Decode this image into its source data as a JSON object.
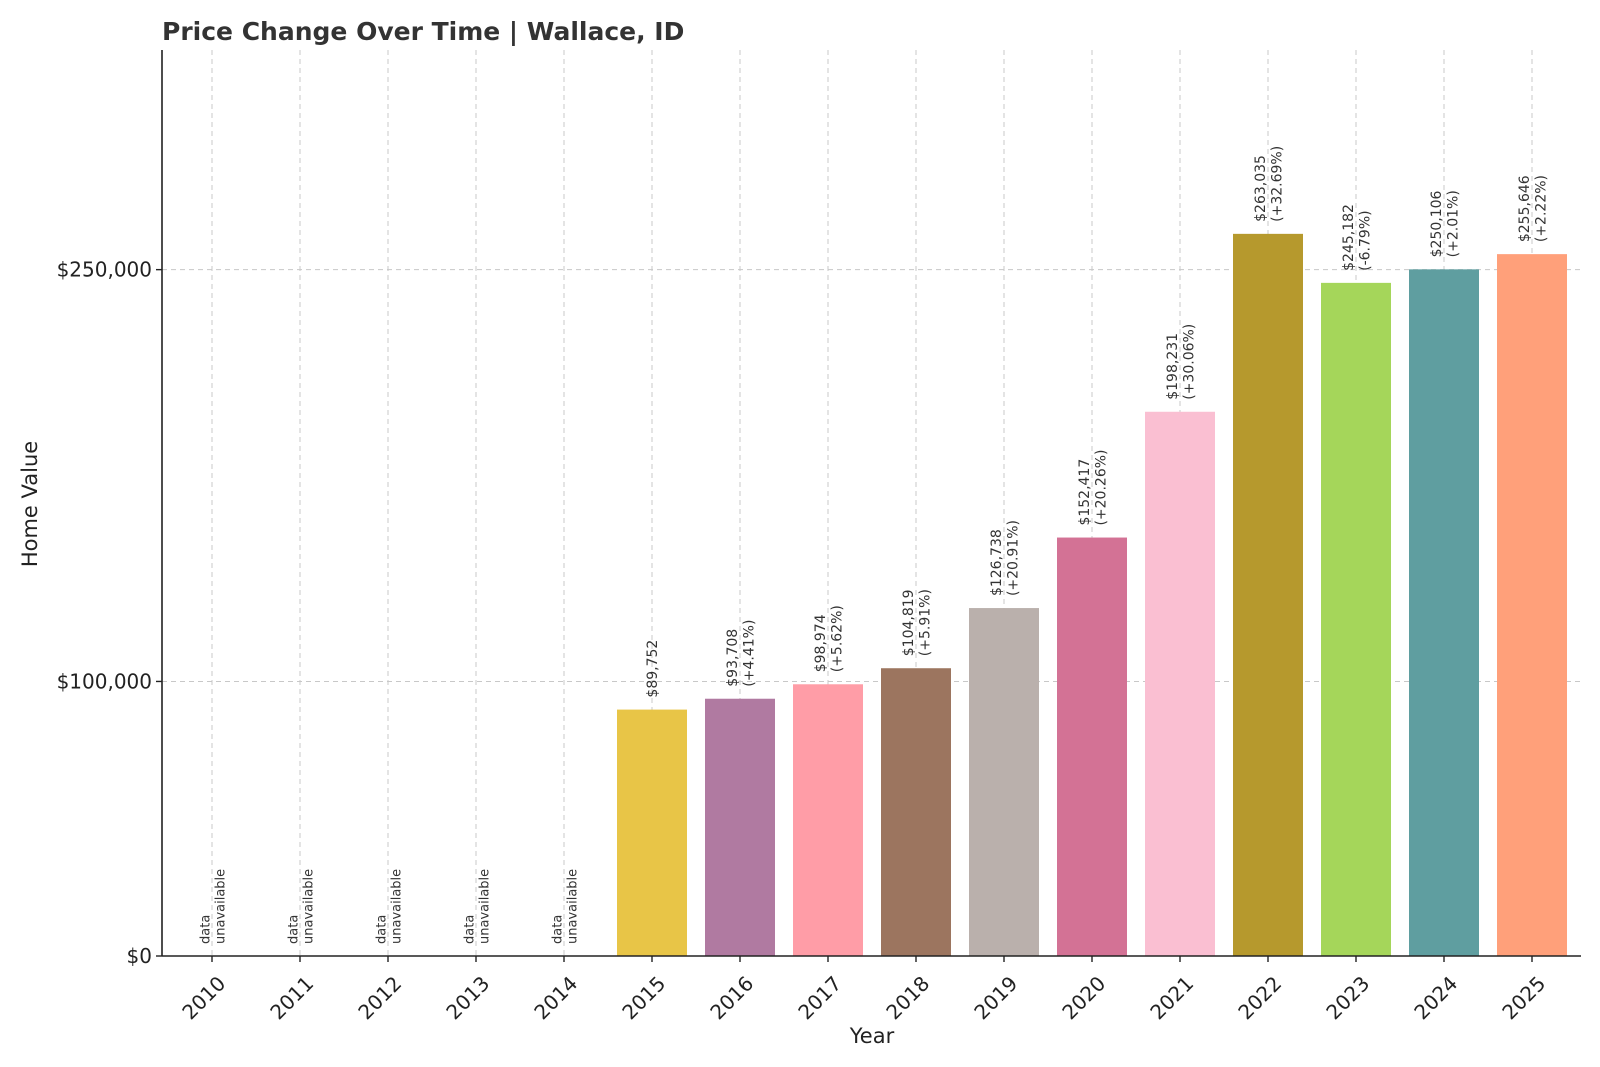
{
  "chart_data": {
    "type": "bar",
    "title": "Price Change Over Time | Wallace, ID",
    "xlabel": "Year",
    "ylabel": "Home Value",
    "categories": [
      "2010",
      "2011",
      "2012",
      "2013",
      "2014",
      "2015",
      "2016",
      "2017",
      "2018",
      "2019",
      "2020",
      "2021",
      "2022",
      "2023",
      "2024",
      "2025"
    ],
    "values": [
      null,
      null,
      null,
      null,
      null,
      89752,
      93708,
      98974,
      104819,
      126738,
      152417,
      198231,
      263035,
      245182,
      250106,
      255646
    ],
    "value_labels": [
      "",
      "",
      "",
      "",
      "",
      "$89,752",
      "$93,708",
      "$98,974",
      "$104,819",
      "$126,738",
      "$152,417",
      "$198,231",
      "$263,035",
      "$245,182",
      "$250,106",
      "$255,646"
    ],
    "change_labels": [
      "",
      "",
      "",
      "",
      "",
      "",
      "(+4.41%)",
      "(+5.62%)",
      "(+5.91%)",
      "(+20.91%)",
      "(+20.26%)",
      "(+30.06%)",
      "(+32.69%)",
      "(-6.79%)",
      "(+2.01%)",
      "(+2.22%)"
    ],
    "na_label_line1": "data",
    "na_label_line2": "unavailable",
    "colors": [
      "#e8c547",
      "#e8c547",
      "#e8c547",
      "#e8c547",
      "#e8c547",
      "#e8c547",
      "#b07aa1",
      "#ff9da7",
      "#9c755f",
      "#bab0ac",
      "#d37295",
      "#fabfd2",
      "#b6992d",
      "#a5d65a",
      "#5f9ea0",
      "#ffa07a"
    ],
    "y_ticks": [
      0,
      100000,
      250000
    ],
    "y_tick_labels": [
      "$0",
      "$100,000",
      "$250,000"
    ],
    "ylim": [
      0,
      330000
    ],
    "grid": true
  }
}
